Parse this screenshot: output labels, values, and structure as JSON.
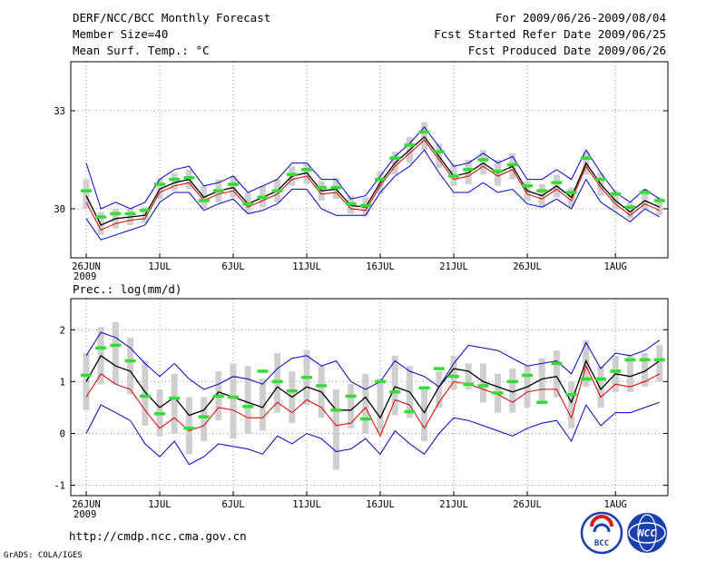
{
  "header": {
    "left1": "DERF/NCC/BCC Monthly Forecast",
    "left2": "Member Size=40",
    "left3": "Mean Surf. Temp.: °C",
    "right1": "For 2009/06/26-2009/08/04",
    "right2": "Fcst Started Refer Date 2009/06/25",
    "right3": "Fcst Produced Date 2009/06/26"
  },
  "footer": {
    "url": "http://cmdp.ncc.cma.gov.cn",
    "credit": "GrADS: COLA/IGES",
    "logo1_text": "BCC",
    "logo2_text": "NCC"
  },
  "colors": {
    "envelope": "#0000d0",
    "ensemble_mean": "#000000",
    "median": "#e00000",
    "climatology": "#33dd33",
    "range_bar": "#cfcfcf",
    "grid": "#888888"
  },
  "chart_data": [
    {
      "type": "line",
      "title": "Mean Surf. Temp.: °C",
      "x_start_day": 0,
      "x_days": 40,
      "xticks": [
        {
          "day": 0,
          "label": "26JUN",
          "sub": "2009"
        },
        {
          "day": 5,
          "label": "1JUL"
        },
        {
          "day": 10,
          "label": "6JUL"
        },
        {
          "day": 15,
          "label": "11JUL"
        },
        {
          "day": 20,
          "label": "16JUL"
        },
        {
          "day": 25,
          "label": "21JUL"
        },
        {
          "day": 30,
          "label": "26JUL"
        },
        {
          "day": 36,
          "label": "1AUG"
        }
      ],
      "ylim": [
        28.5,
        34.5
      ],
      "yticks": [
        30,
        33
      ],
      "series": [
        {
          "name": "upper",
          "values": [
            31.4,
            30.0,
            30.2,
            30.0,
            30.2,
            30.9,
            31.2,
            31.3,
            30.7,
            30.8,
            31.0,
            30.5,
            30.7,
            30.9,
            31.4,
            31.4,
            30.9,
            30.9,
            30.3,
            30.4,
            31.0,
            31.6,
            32.0,
            32.5,
            31.9,
            31.3,
            31.4,
            31.7,
            31.4,
            31.6,
            30.9,
            30.9,
            31.2,
            30.9,
            31.8,
            31.1,
            30.5,
            30.2,
            30.6,
            30.3
          ]
        },
        {
          "name": "mean",
          "values": [
            30.4,
            29.5,
            29.7,
            29.75,
            29.8,
            30.6,
            30.8,
            30.9,
            30.35,
            30.55,
            30.65,
            30.15,
            30.35,
            30.55,
            31.0,
            31.1,
            30.55,
            30.6,
            30.1,
            30.05,
            30.8,
            31.4,
            31.8,
            32.2,
            31.6,
            31.0,
            31.1,
            31.4,
            31.1,
            31.3,
            30.55,
            30.4,
            30.7,
            30.35,
            31.4,
            30.75,
            30.25,
            29.9,
            30.25,
            30.05
          ]
        },
        {
          "name": "median",
          "values": [
            30.2,
            29.35,
            29.55,
            29.65,
            29.7,
            30.5,
            30.7,
            30.8,
            30.25,
            30.45,
            30.55,
            30.05,
            30.25,
            30.45,
            30.9,
            31.0,
            30.45,
            30.5,
            30.0,
            29.95,
            30.7,
            31.3,
            31.7,
            32.1,
            31.5,
            30.9,
            31.0,
            31.3,
            31.0,
            31.2,
            30.45,
            30.3,
            30.6,
            30.25,
            31.3,
            30.65,
            30.15,
            29.8,
            30.15,
            29.95
          ]
        },
        {
          "name": "lower",
          "values": [
            29.7,
            29.05,
            29.2,
            29.35,
            29.5,
            30.2,
            30.5,
            30.5,
            29.95,
            30.15,
            30.3,
            29.85,
            29.95,
            30.15,
            30.6,
            30.6,
            30.0,
            29.8,
            29.8,
            29.8,
            30.5,
            31.0,
            31.3,
            31.8,
            31.1,
            30.5,
            30.5,
            30.8,
            30.5,
            30.6,
            30.15,
            30.05,
            30.3,
            30.0,
            30.9,
            30.2,
            29.9,
            29.6,
            30.0,
            29.75
          ]
        },
        {
          "name": "climatology",
          "values": [
            30.55,
            29.75,
            29.85,
            29.85,
            29.95,
            30.75,
            30.9,
            30.95,
            30.25,
            30.55,
            30.75,
            30.15,
            30.35,
            30.55,
            31.05,
            31.2,
            30.65,
            30.65,
            30.15,
            30.1,
            30.9,
            31.55,
            31.95,
            32.35,
            31.75,
            31.0,
            31.2,
            31.5,
            31.15,
            31.35,
            30.7,
            30.55,
            30.8,
            30.5,
            31.55,
            30.9,
            30.45,
            30.05,
            30.5,
            30.25
          ]
        },
        {
          "name": "range_low",
          "values": [
            30.0,
            29.2,
            29.4,
            29.5,
            29.55,
            30.3,
            30.55,
            30.6,
            30.0,
            30.2,
            30.35,
            29.9,
            30.05,
            30.2,
            30.7,
            30.75,
            30.25,
            30.3,
            29.85,
            29.8,
            30.45,
            31.05,
            31.4,
            31.8,
            31.25,
            30.7,
            30.75,
            31.05,
            30.7,
            30.9,
            30.25,
            30.05,
            30.35,
            30.05,
            31.05,
            30.4,
            30.0,
            29.7,
            30.0,
            29.8
          ]
        },
        {
          "name": "range_high",
          "values": [
            30.9,
            29.9,
            30.0,
            30.0,
            30.05,
            30.95,
            31.1,
            31.2,
            30.7,
            30.9,
            31.0,
            30.5,
            30.7,
            30.9,
            31.3,
            31.4,
            30.85,
            30.95,
            30.4,
            30.35,
            31.15,
            31.75,
            32.2,
            32.65,
            32.0,
            31.35,
            31.5,
            31.8,
            31.5,
            31.7,
            30.85,
            30.75,
            31.05,
            30.65,
            31.75,
            31.1,
            30.55,
            30.2,
            30.6,
            30.35
          ]
        }
      ]
    },
    {
      "type": "line",
      "title": "Prec.: log(mm/d)",
      "x_start_day": 0,
      "x_days": 40,
      "xticks": [
        {
          "day": 0,
          "label": "26JUN",
          "sub": "2009"
        },
        {
          "day": 5,
          "label": "1JUL"
        },
        {
          "day": 10,
          "label": "6JUL"
        },
        {
          "day": 15,
          "label": "11JUL"
        },
        {
          "day": 20,
          "label": "16JUL"
        },
        {
          "day": 25,
          "label": "21JUL"
        },
        {
          "day": 30,
          "label": "26JUL"
        },
        {
          "day": 36,
          "label": "1AUG"
        }
      ],
      "ylim": [
        -1.2,
        2.6
      ],
      "yticks": [
        -1,
        0,
        1,
        2
      ],
      "series": [
        {
          "name": "upper",
          "values": [
            1.5,
            1.95,
            1.85,
            1.65,
            1.35,
            1.1,
            1.35,
            1.05,
            0.85,
            0.95,
            1.1,
            1.05,
            0.95,
            1.25,
            1.45,
            1.5,
            1.3,
            1.4,
            1.0,
            0.85,
            1.0,
            1.4,
            1.2,
            1.1,
            0.9,
            1.35,
            1.7,
            1.65,
            1.6,
            1.45,
            1.3,
            1.35,
            1.4,
            1.15,
            1.75,
            1.25,
            1.55,
            1.5,
            1.6,
            1.8
          ]
        },
        {
          "name": "mean",
          "values": [
            1.0,
            1.5,
            1.3,
            1.2,
            0.8,
            0.5,
            0.7,
            0.35,
            0.45,
            0.8,
            0.7,
            0.6,
            0.5,
            0.9,
            0.7,
            0.9,
            0.8,
            0.45,
            0.45,
            0.7,
            0.3,
            0.9,
            0.8,
            0.4,
            0.9,
            1.25,
            1.2,
            1.0,
            0.9,
            0.8,
            0.9,
            1.05,
            1.1,
            0.6,
            1.4,
            0.85,
            1.15,
            1.1,
            1.2,
            1.4
          ]
        },
        {
          "name": "median",
          "values": [
            0.7,
            1.15,
            0.95,
            0.85,
            0.45,
            0.1,
            0.3,
            0.05,
            0.15,
            0.5,
            0.45,
            0.3,
            0.3,
            0.6,
            0.4,
            0.65,
            0.5,
            0.15,
            0.2,
            0.5,
            -0.05,
            0.65,
            0.55,
            0.1,
            0.6,
            1.0,
            0.95,
            0.85,
            0.75,
            0.6,
            0.8,
            0.85,
            0.85,
            0.3,
            1.3,
            0.7,
            0.95,
            0.9,
            1.0,
            1.15
          ]
        },
        {
          "name": "lower",
          "values": [
            0.0,
            0.55,
            0.4,
            0.25,
            -0.2,
            -0.45,
            -0.15,
            -0.6,
            -0.45,
            -0.2,
            -0.25,
            -0.3,
            -0.4,
            -0.05,
            -0.2,
            0.0,
            -0.1,
            -0.35,
            -0.3,
            -0.1,
            -0.4,
            0.05,
            -0.2,
            -0.4,
            0.0,
            0.3,
            0.25,
            0.15,
            0.05,
            -0.05,
            0.1,
            0.2,
            0.25,
            -0.15,
            0.55,
            0.15,
            0.4,
            0.4,
            0.5,
            0.6
          ]
        },
        {
          "name": "climatology",
          "values": [
            1.12,
            1.65,
            1.7,
            1.4,
            0.72,
            0.38,
            0.68,
            0.1,
            0.32,
            0.72,
            0.7,
            0.52,
            1.2,
            1.0,
            0.82,
            1.08,
            0.92,
            0.45,
            0.72,
            0.28,
            1.0,
            0.8,
            0.42,
            0.88,
            1.25,
            1.1,
            0.95,
            0.92,
            0.78,
            1.0,
            1.12,
            0.6,
            1.35,
            0.75,
            1.05,
            1.05,
            1.2,
            1.42,
            1.42,
            1.42
          ]
        },
        {
          "name": "range_low",
          "values": [
            0.45,
            0.95,
            0.95,
            0.75,
            0.15,
            -0.05,
            0.0,
            -0.4,
            -0.15,
            0.25,
            -0.1,
            0.0,
            0.05,
            0.4,
            0.2,
            0.55,
            0.3,
            -0.7,
            0.1,
            0.0,
            0.0,
            0.35,
            0.3,
            -0.15,
            0.5,
            0.85,
            0.85,
            0.6,
            0.4,
            0.4,
            0.5,
            0.6,
            0.7,
            0.1,
            0.9,
            0.5,
            0.8,
            0.8,
            0.9,
            1.0
          ]
        },
        {
          "name": "range_high",
          "values": [
            1.55,
            2.05,
            2.15,
            1.85,
            1.4,
            0.85,
            1.15,
            0.7,
            0.7,
            1.2,
            1.35,
            1.3,
            1.05,
            1.55,
            1.2,
            1.6,
            1.3,
            0.85,
            0.95,
            1.15,
            1.05,
            1.5,
            1.3,
            0.85,
            1.2,
            1.5,
            1.35,
            1.35,
            1.15,
            1.25,
            1.3,
            1.45,
            1.6,
            1.0,
            1.8,
            1.3,
            1.5,
            1.5,
            1.55,
            1.7
          ]
        }
      ]
    }
  ]
}
